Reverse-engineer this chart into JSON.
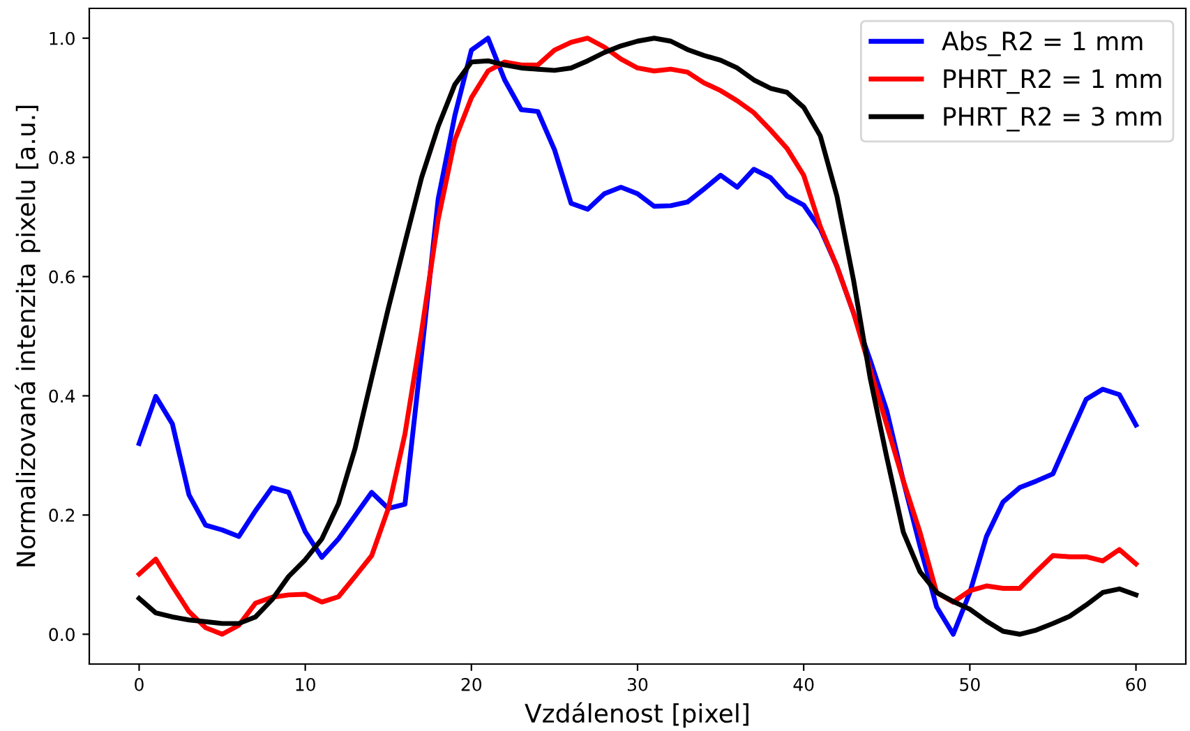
{
  "chart_data": {
    "type": "line",
    "xlabel": "Vzdálenost [pixel]",
    "ylabel": "Normalizovaná intenzita pixelu [a.u.]",
    "x": [
      0,
      1,
      2,
      3,
      4,
      5,
      6,
      7,
      8,
      9,
      10,
      11,
      12,
      13,
      14,
      15,
      16,
      17,
      18,
      19,
      20,
      21,
      22,
      23,
      24,
      25,
      26,
      27,
      28,
      29,
      30,
      31,
      32,
      33,
      34,
      35,
      36,
      37,
      38,
      39,
      40,
      41,
      42,
      43,
      44,
      45,
      46,
      47,
      48,
      49,
      50,
      51,
      52,
      53,
      54,
      55,
      56,
      57,
      58,
      59,
      60
    ],
    "series": [
      {
        "name": "Abs_R2 = 1 mm",
        "color": "#0000ff",
        "values": [
          0.32,
          0.399,
          0.353,
          0.234,
          0.183,
          0.175,
          0.164,
          0.207,
          0.246,
          0.238,
          0.172,
          0.129,
          0.16,
          0.199,
          0.238,
          0.211,
          0.218,
          0.47,
          0.73,
          0.87,
          0.98,
          1.0,
          0.93,
          0.88,
          0.877,
          0.813,
          0.723,
          0.713,
          0.739,
          0.75,
          0.739,
          0.718,
          0.719,
          0.725,
          0.747,
          0.77,
          0.75,
          0.78,
          0.766,
          0.735,
          0.72,
          0.68,
          0.617,
          0.539,
          0.46,
          0.375,
          0.257,
          0.148,
          0.046,
          0.0,
          0.07,
          0.164,
          0.222,
          0.246,
          0.257,
          0.269,
          0.332,
          0.394,
          0.411,
          0.402,
          0.351
        ]
      },
      {
        "name": "PHRT_R2 = 1 mm",
        "color": "#ff0000",
        "values": [
          0.101,
          0.126,
          0.081,
          0.038,
          0.011,
          0.0,
          0.015,
          0.052,
          0.062,
          0.066,
          0.067,
          0.054,
          0.063,
          0.097,
          0.132,
          0.211,
          0.336,
          0.508,
          0.696,
          0.829,
          0.9,
          0.945,
          0.96,
          0.955,
          0.955,
          0.98,
          0.993,
          1.0,
          0.985,
          0.965,
          0.95,
          0.945,
          0.948,
          0.943,
          0.925,
          0.912,
          0.895,
          0.875,
          0.846,
          0.815,
          0.77,
          0.684,
          0.617,
          0.539,
          0.445,
          0.351,
          0.257,
          0.171,
          0.07,
          0.054,
          0.073,
          0.081,
          0.077,
          0.077,
          0.105,
          0.132,
          0.13,
          0.13,
          0.123,
          0.142,
          0.118
        ]
      },
      {
        "name": "PHRT_R2 = 3 mm",
        "color": "#000000",
        "values": [
          0.06,
          0.036,
          0.029,
          0.024,
          0.021,
          0.018,
          0.018,
          0.029,
          0.058,
          0.097,
          0.125,
          0.16,
          0.219,
          0.312,
          0.43,
          0.547,
          0.657,
          0.766,
          0.852,
          0.922,
          0.96,
          0.962,
          0.955,
          0.95,
          0.948,
          0.946,
          0.95,
          0.962,
          0.976,
          0.987,
          0.995,
          1.0,
          0.995,
          0.981,
          0.971,
          0.963,
          0.95,
          0.93,
          0.916,
          0.909,
          0.884,
          0.836,
          0.735,
          0.594,
          0.43,
          0.297,
          0.171,
          0.105,
          0.07,
          0.055,
          0.042,
          0.022,
          0.005,
          0.0,
          0.007,
          0.018,
          0.03,
          0.049,
          0.07,
          0.076,
          0.066
        ]
      }
    ],
    "xlim": [
      -3,
      63
    ],
    "ylim": [
      -0.05,
      1.05
    ],
    "xticks": [
      0,
      10,
      20,
      30,
      40,
      50,
      60
    ],
    "yticks": [
      {
        "value": 0,
        "label": "0.0"
      },
      {
        "value": 0.2,
        "label": "0.2"
      },
      {
        "value": 0.4,
        "label": "0.4"
      },
      {
        "value": 0.6,
        "label": "0.6"
      },
      {
        "value": 0.8,
        "label": "0.8"
      },
      {
        "value": 1,
        "label": "1.0"
      }
    ],
    "legend": "top right",
    "grid": false,
    "line_style": "solid",
    "marker": "none"
  }
}
